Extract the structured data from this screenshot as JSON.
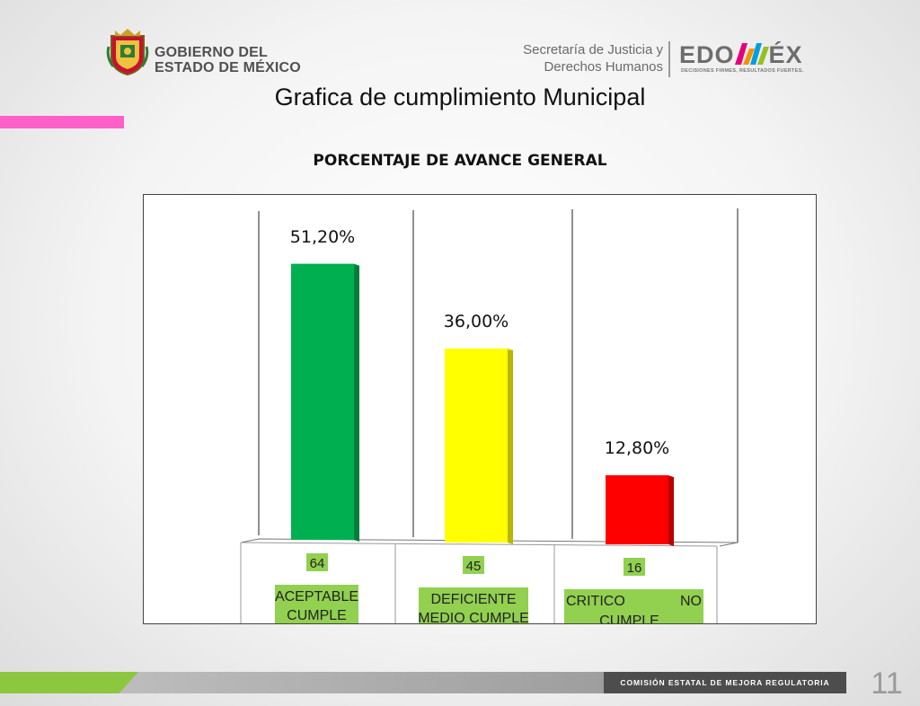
{
  "header": {
    "gov_line1": "GOBIERNO DEL",
    "gov_line2": "ESTADO DE MÉXICO",
    "secretaria_line1": "Secretaría de Justicia y",
    "secretaria_line2": "Derechos Humanos",
    "edomex_pre": "EDO",
    "edomex_post": "ÉX",
    "edomex_tagline": "DECISIONES FIRMES, RESULTADOS FUERTES."
  },
  "page_title": "Grafica de cumplimiento Municipal",
  "colors": {
    "accent_pink": "#ff5fc8",
    "footer_green": "#8dc63f",
    "label_green": "#92d050"
  },
  "chart_data": {
    "type": "bar",
    "title": "PORCENTAJE DE AVANCE GENERAL",
    "categories": [
      {
        "count": "64",
        "label_line1": "ACEPTABLE",
        "label_line2": "CUMPLE",
        "label_align": "center"
      },
      {
        "count": "45",
        "label_line1": "DEFICIENTE",
        "label_line2": "MEDIO CUMPLE",
        "label_align": "center"
      },
      {
        "count": "16",
        "label_line1": "CRITICO",
        "label_line1b": "NO",
        "label_line2": "CUMPLE",
        "label_align": "split"
      }
    ],
    "values": [
      51.2,
      36.0,
      12.8
    ],
    "value_labels": [
      "51,20%",
      "36,00%",
      "12,80%"
    ],
    "bar_colors": [
      "#00b050",
      "#ffff00",
      "#ff0000"
    ],
    "ylim": [
      0,
      60
    ],
    "grid": false,
    "style": "3d"
  },
  "footer": {
    "org_text": "COMISIÓN ESTATAL DE MEJORA REGULATORIA",
    "page_number": "11"
  }
}
